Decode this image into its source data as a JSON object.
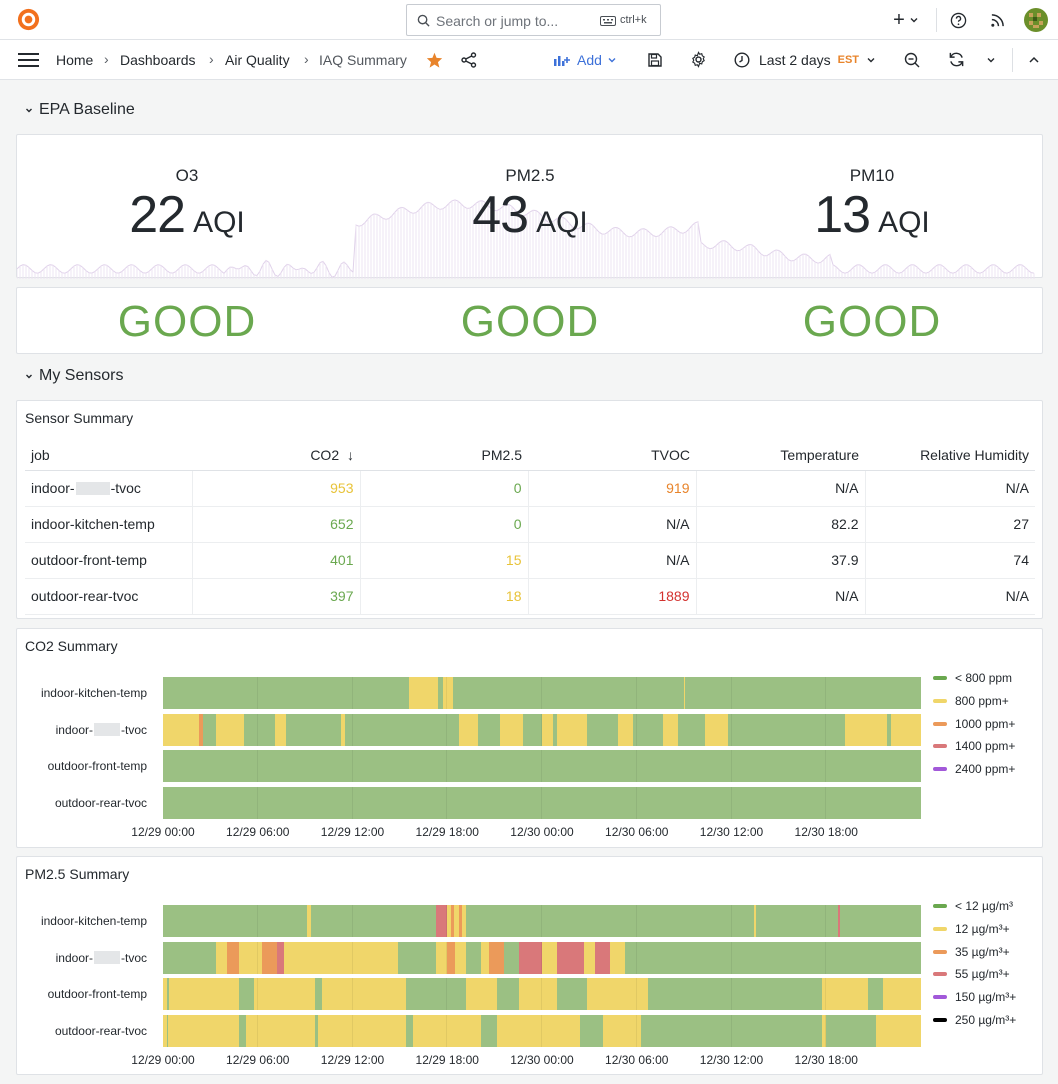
{
  "topbar": {
    "search_placeholder": "Search or jump to...",
    "search_shortcut": "ctrl+k"
  },
  "breadcrumb": [
    {
      "label": "Home"
    },
    {
      "label": "Dashboards"
    },
    {
      "label": "Air Quality"
    },
    {
      "label": "IAQ Summary"
    }
  ],
  "toolbar": {
    "add_label": "Add",
    "time_range": "Last 2 days",
    "timezone": "EST"
  },
  "rows": {
    "epa": "EPA Baseline",
    "sensors": "My Sensors"
  },
  "epa": {
    "stats": [
      {
        "label": "O3",
        "value": "22",
        "unit": "AQI",
        "category": "GOOD"
      },
      {
        "label": "PM2.5",
        "value": "43",
        "unit": "AQI",
        "category": "GOOD"
      },
      {
        "label": "PM10",
        "value": "13",
        "unit": "AQI",
        "category": "GOOD"
      }
    ]
  },
  "colors": {
    "green": "#6aa84f",
    "lane_green": "#9bc083",
    "yellow": "#f0d66a",
    "orange": "#eb9a5a",
    "red": "#d9787a",
    "purple": "#a259d9",
    "black": "#000000",
    "co2_yellow": "#e8c339",
    "co2_orange": "#e8842b",
    "co2_red": "#d3322f"
  },
  "sensor_summary": {
    "title": "Sensor Summary",
    "columns": [
      "job",
      "CO2",
      "PM2.5",
      "TVOC",
      "Temperature",
      "Relative Humidity"
    ],
    "sort_column": "CO2",
    "rows": [
      {
        "job_prefix": "indoor-",
        "job_suffix": "-tvoc",
        "co2": "953",
        "pm25": "0",
        "tvoc": "919",
        "temp": "N/A",
        "rh": "N/A"
      },
      {
        "job": "indoor-kitchen-temp",
        "co2": "652",
        "pm25": "0",
        "tvoc": "N/A",
        "temp": "82.2",
        "rh": "27"
      },
      {
        "job": "outdoor-front-temp",
        "co2": "401",
        "pm25": "15",
        "tvoc": "N/A",
        "temp": "37.9",
        "rh": "74"
      },
      {
        "job": "outdoor-rear-tvoc",
        "co2": "397",
        "pm25": "18",
        "tvoc": "1889",
        "temp": "N/A",
        "rh": "N/A"
      }
    ]
  },
  "co2_summary": {
    "title": "CO2 Summary",
    "lanes": [
      {
        "label": "indoor-kitchen-temp"
      },
      {
        "label_prefix": "indoor-",
        "label_suffix": "-tvoc"
      },
      {
        "label": "outdoor-front-temp"
      },
      {
        "label": "outdoor-rear-tvoc"
      }
    ],
    "x_ticks": [
      "12/29 00:00",
      "12/29 06:00",
      "12/29 12:00",
      "12/29 18:00",
      "12/30 00:00",
      "12/30 06:00",
      "12/30 12:00",
      "12/30 18:00"
    ],
    "legend": [
      {
        "label": "< 800 ppm",
        "color": "#6aa84f"
      },
      {
        "label": "800 ppm+",
        "color": "#f0d66a"
      },
      {
        "label": "1000 ppm+",
        "color": "#eb9a5a"
      },
      {
        "label": "1400 ppm+",
        "color": "#d9787a"
      },
      {
        "label": "2400 ppm+",
        "color": "#a259d9"
      }
    ]
  },
  "pm25_summary": {
    "title": "PM2.5 Summary",
    "lanes": [
      {
        "label": "indoor-kitchen-temp"
      },
      {
        "label_prefix": "indoor-",
        "label_suffix": "-tvoc"
      },
      {
        "label": "outdoor-front-temp"
      },
      {
        "label": "outdoor-rear-tvoc"
      }
    ],
    "x_ticks": [
      "12/29 00:00",
      "12/29 06:00",
      "12/29 12:00",
      "12/29 18:00",
      "12/30 00:00",
      "12/30 06:00",
      "12/30 12:00",
      "12/30 18:00"
    ],
    "legend": [
      {
        "label": "< 12 µg/m³",
        "color": "#6aa84f"
      },
      {
        "label": "12 µg/m³+",
        "color": "#f0d66a"
      },
      {
        "label": "35 µg/m³+",
        "color": "#eb9a5a"
      },
      {
        "label": "55 µg/m³+",
        "color": "#d9787a"
      },
      {
        "label": "150 µg/m³+",
        "color": "#a259d9"
      },
      {
        "label": "250 µg/m³+",
        "color": "#000000"
      }
    ]
  },
  "state_timeline_data": {
    "co2": [
      [
        [
          "g",
          0,
          0.325
        ],
        [
          "y",
          0.325,
          0.363
        ],
        [
          "g",
          0.363,
          0.37
        ],
        [
          "y",
          0.37,
          0.383
        ],
        [
          "g",
          0.383,
          0.687
        ],
        [
          "y",
          0.687,
          0.689
        ],
        [
          "g",
          0.689,
          1
        ]
      ],
      [
        [
          "y",
          0,
          0.048
        ],
        [
          "o",
          0.048,
          0.053
        ],
        [
          "g",
          0.053,
          0.07
        ],
        [
          "y",
          0.07,
          0.107
        ],
        [
          "g",
          0.107,
          0.148
        ],
        [
          "y",
          0.148,
          0.162
        ],
        [
          "g",
          0.162,
          0.235
        ],
        [
          "y",
          0.235,
          0.24
        ],
        [
          "g",
          0.24,
          0.39
        ],
        [
          "y",
          0.39,
          0.415
        ],
        [
          "g",
          0.415,
          0.445
        ],
        [
          "y",
          0.445,
          0.475
        ],
        [
          "g",
          0.475,
          0.5
        ],
        [
          "y",
          0.5,
          0.515
        ],
        [
          "g",
          0.515,
          0.5
        ],
        [
          "y",
          0.52,
          0.56
        ],
        [
          "g",
          0.56,
          0.6
        ],
        [
          "y",
          0.6,
          0.62
        ],
        [
          "g",
          0.62,
          0.66
        ],
        [
          "y",
          0.66,
          0.68
        ],
        [
          "g",
          0.68,
          0.715
        ],
        [
          "y",
          0.715,
          0.745
        ],
        [
          "g",
          0.745,
          0.9
        ],
        [
          "y",
          0.9,
          0.955
        ],
        [
          "g",
          0.955,
          0.961
        ],
        [
          "y",
          0.961,
          1
        ]
      ],
      [
        [
          "g",
          0,
          1
        ]
      ],
      [
        [
          "g",
          0,
          1
        ]
      ]
    ],
    "pm25": [
      [
        [
          "g",
          0,
          0.19
        ],
        [
          "y",
          0.19,
          0.195
        ],
        [
          "g",
          0.195,
          0.36
        ],
        [
          "r",
          0.36,
          0.375
        ],
        [
          "y",
          0.375,
          0.38
        ],
        [
          "o",
          0.38,
          0.384
        ],
        [
          "y",
          0.384,
          0.39
        ],
        [
          "o",
          0.39,
          0.394
        ],
        [
          "y",
          0.394,
          0.4
        ],
        [
          "g",
          0.4,
          0.78
        ],
        [
          "y",
          0.78,
          0.782
        ],
        [
          "g",
          0.782,
          0.89
        ],
        [
          "r",
          0.89,
          0.893
        ],
        [
          "g",
          0.893,
          1
        ]
      ],
      [
        [
          "g",
          0,
          0.07
        ],
        [
          "y",
          0.07,
          0.085
        ],
        [
          "o",
          0.085,
          0.1
        ],
        [
          "y",
          0.1,
          0.13
        ],
        [
          "o",
          0.13,
          0.15
        ],
        [
          "r",
          0.15,
          0.16
        ],
        [
          "y",
          0.16,
          0.18
        ],
        [
          "g",
          0.18,
          0.18
        ],
        [
          "y",
          0.18,
          0.31
        ],
        [
          "g",
          0.31,
          0.36
        ],
        [
          "y",
          0.36,
          0.375
        ],
        [
          "o",
          0.375,
          0.385
        ],
        [
          "y",
          0.385,
          0.4
        ],
        [
          "g",
          0.4,
          0.42
        ],
        [
          "y",
          0.42,
          0.43
        ],
        [
          "o",
          0.43,
          0.45
        ],
        [
          "g",
          0.45,
          0.47
        ],
        [
          "r",
          0.47,
          0.5
        ],
        [
          "y",
          0.5,
          0.52
        ],
        [
          "r",
          0.52,
          0.555
        ],
        [
          "y",
          0.555,
          0.57
        ],
        [
          "r",
          0.57,
          0.59
        ],
        [
          "y",
          0.59,
          0.61
        ],
        [
          "g",
          0.61,
          1
        ]
      ],
      [
        [
          "y",
          0,
          0.005
        ],
        [
          "g",
          0.005,
          0.008
        ],
        [
          "y",
          0.008,
          0.1
        ],
        [
          "g",
          0.1,
          0.12
        ],
        [
          "y",
          0.12,
          0.2
        ],
        [
          "g",
          0.2,
          0.21
        ],
        [
          "y",
          0.21,
          0.32
        ],
        [
          "g",
          0.32,
          0.4
        ],
        [
          "y",
          0.4,
          0.44
        ],
        [
          "g",
          0.44,
          0.47
        ],
        [
          "y",
          0.47,
          0.52
        ],
        [
          "g",
          0.52,
          0.56
        ],
        [
          "y",
          0.56,
          0.64
        ],
        [
          "g",
          0.64,
          0.87
        ],
        [
          "y",
          0.87,
          0.93
        ],
        [
          "g",
          0.93,
          0.95
        ],
        [
          "y",
          0.95,
          1
        ]
      ],
      [
        [
          "y",
          0,
          0.005
        ],
        [
          "g",
          0.005,
          0.007
        ],
        [
          "y",
          0.007,
          0.1
        ],
        [
          "g",
          0.1,
          0.11
        ],
        [
          "y",
          0.11,
          0.2
        ],
        [
          "g",
          0.2,
          0.205
        ],
        [
          "y",
          0.205,
          0.32
        ],
        [
          "g",
          0.32,
          0.33
        ],
        [
          "y",
          0.33,
          0.42
        ],
        [
          "g",
          0.42,
          0.44
        ],
        [
          "y",
          0.44,
          0.55
        ],
        [
          "g",
          0.55,
          0.58
        ],
        [
          "y",
          0.58,
          0.63
        ],
        [
          "g",
          0.63,
          0.87
        ],
        [
          "y",
          0.87,
          0.875
        ],
        [
          "g",
          0.875,
          0.94
        ],
        [
          "y",
          0.94,
          1
        ]
      ]
    ]
  }
}
